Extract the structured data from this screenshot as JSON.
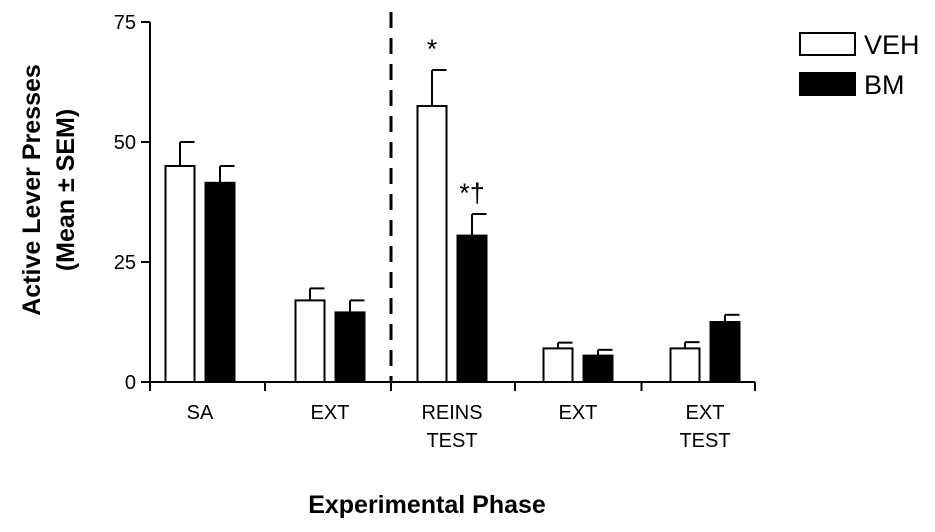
{
  "chart_data": {
    "type": "bar",
    "title": "",
    "xlabel": "Experimental Phase",
    "ylabel_lines": [
      "Active Lever Presses",
      "(Mean ± SEM)"
    ],
    "ylim": [
      0,
      75
    ],
    "yticks": [
      0,
      25,
      50,
      75
    ],
    "categories": [
      {
        "lines": [
          "SA"
        ]
      },
      {
        "lines": [
          "EXT"
        ]
      },
      {
        "lines": [
          "REINS",
          "TEST"
        ]
      },
      {
        "lines": [
          "EXT"
        ]
      },
      {
        "lines": [
          "EXT",
          "TEST"
        ]
      }
    ],
    "series": [
      {
        "name": "VEH",
        "fill": "#ffffff",
        "values": [
          45,
          17,
          57.5,
          7,
          7
        ],
        "sem": [
          5,
          2.5,
          7.5,
          1.2,
          1.3
        ],
        "annotations": [
          "",
          "",
          "*",
          "",
          ""
        ]
      },
      {
        "name": "BM",
        "fill": "#000000",
        "values": [
          41.5,
          14.5,
          30.5,
          5.5,
          12.5
        ],
        "sem": [
          3.5,
          2.5,
          4.5,
          1.2,
          1.5
        ],
        "annotations": [
          "",
          "",
          "*†",
          "",
          ""
        ]
      }
    ],
    "divider_after_category": 1,
    "legend_position": "top-right"
  }
}
